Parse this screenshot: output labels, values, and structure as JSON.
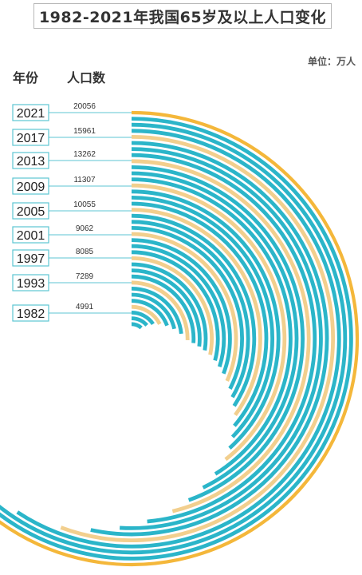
{
  "title": "1982-2021年我国65岁及以上人口变化",
  "unit_label": "单位：万人",
  "headers": {
    "year": "年份",
    "population": "人口数"
  },
  "colors": {
    "teal": "#2bb5c9",
    "light": "#f2cf8e",
    "gold": "#f4b73a",
    "label_border": "#5cc6d3"
  },
  "chart_data": {
    "type": "radial-bar",
    "title": "1982-2021年我国65岁及以上人口变化",
    "unit": "万人",
    "categories": [
      "2021",
      "2017",
      "2013",
      "2009",
      "2005",
      "2001",
      "1997",
      "1993",
      "1982"
    ],
    "values": [
      20056,
      15961,
      13262,
      11307,
      10055,
      9062,
      8085,
      7289,
      4991
    ]
  }
}
